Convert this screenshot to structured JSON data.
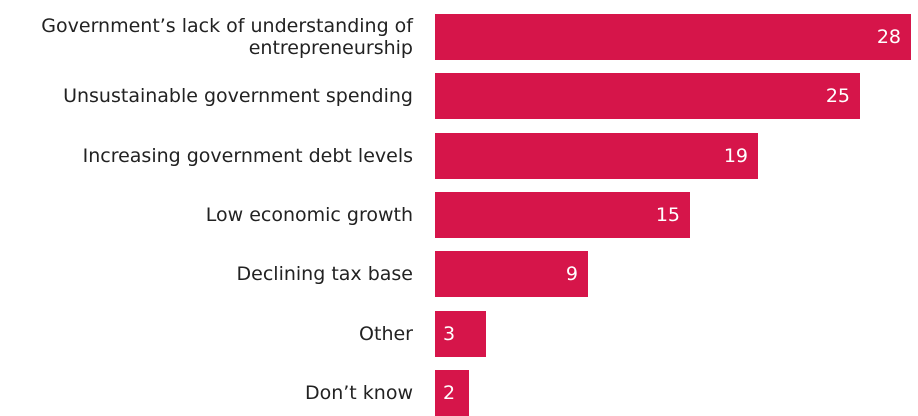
{
  "chart_data": {
    "type": "bar",
    "orientation": "horizontal",
    "categories": [
      "Government’s lack of understanding of\nentrepreneurship",
      "Unsustainable government spending",
      "Increasing government debt levels",
      "Low economic growth",
      "Declining tax base",
      "Other",
      "Don’t know"
    ],
    "values": [
      28,
      25,
      19,
      15,
      9,
      3,
      2
    ],
    "value_labels": [
      "28",
      "25",
      "19",
      "15",
      "9",
      "3",
      "2"
    ],
    "xlim": [
      0,
      28
    ],
    "grid": false,
    "legend": "none",
    "bar_color": "#d6154a",
    "value_label_color": "#ffffff",
    "label_color": "#222222"
  }
}
